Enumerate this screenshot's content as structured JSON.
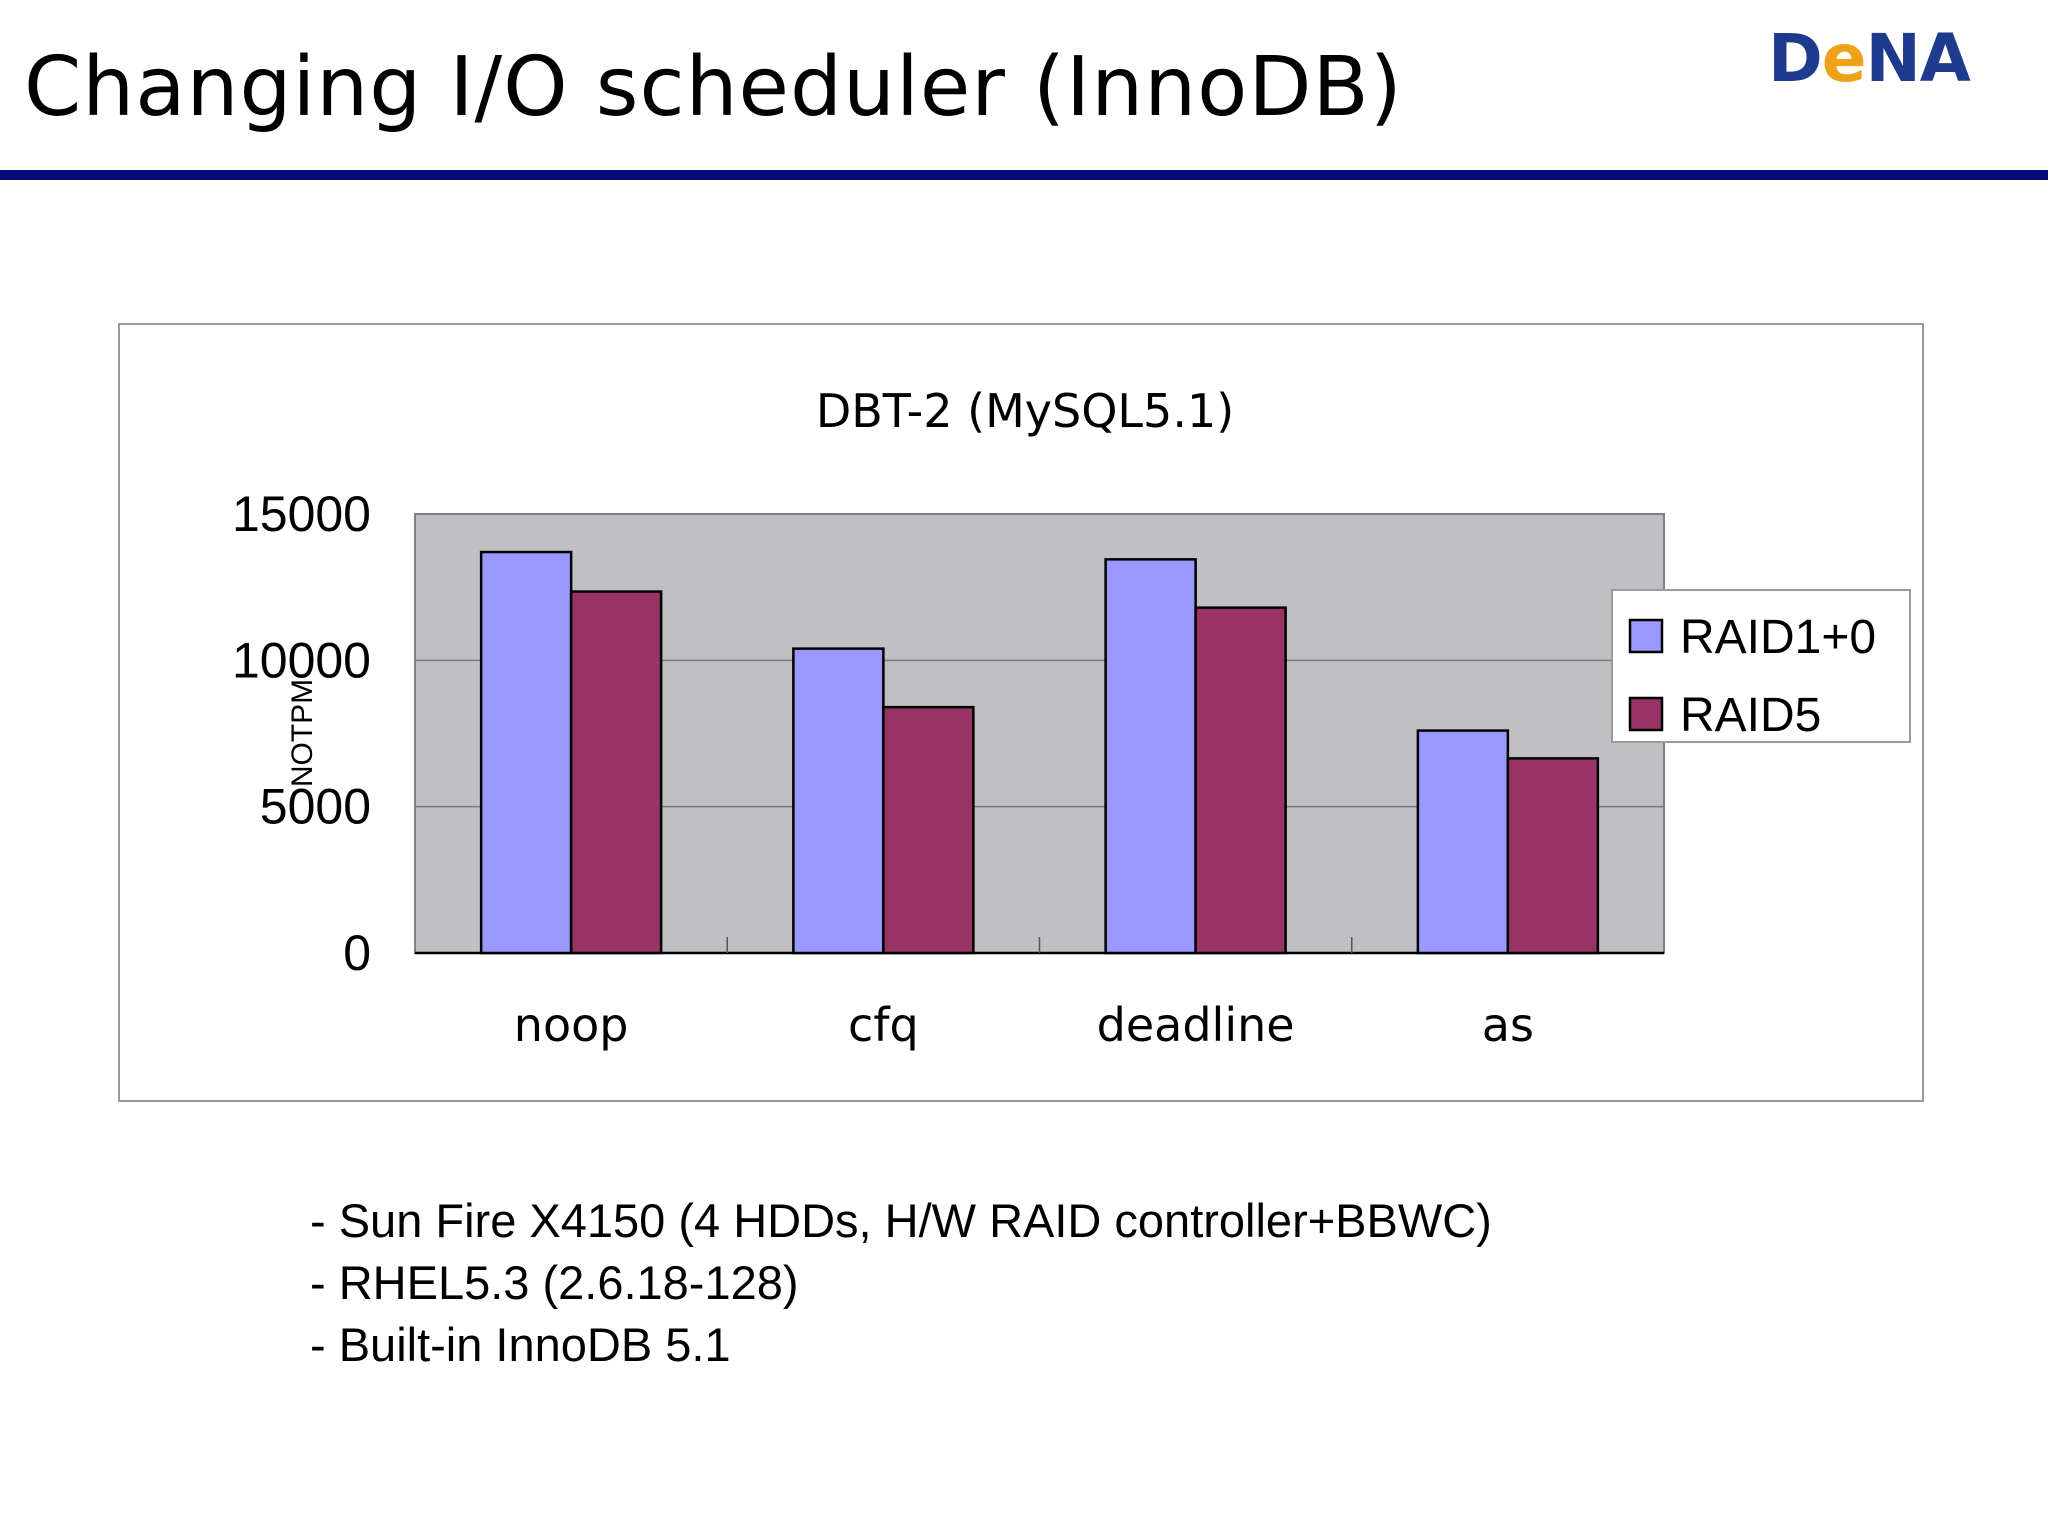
{
  "slide": {
    "title": "Changing I/O scheduler (InnoDB)",
    "logo": {
      "part1": "D",
      "part2": "e",
      "part3": "NA"
    }
  },
  "colors": {
    "rule": "#0a0a7a",
    "plot_background": "#c0c0c4",
    "series": [
      "#9999ff",
      "#993366"
    ]
  },
  "chart_data": {
    "type": "bar",
    "title": "DBT-2 (MySQL5.1)",
    "ylabel": "NOTPM",
    "xlabel": "",
    "categories": [
      "noop",
      "cfq",
      "deadline",
      "as"
    ],
    "series": [
      {
        "name": "RAID1+0",
        "values": [
          13700,
          10400,
          13450,
          7600
        ]
      },
      {
        "name": "RAID5",
        "values": [
          12350,
          8400,
          11800,
          6650
        ]
      }
    ],
    "ylim": [
      0,
      15000
    ],
    "yticks": [
      "0",
      "5000",
      "10000",
      "15000"
    ],
    "grid": true,
    "legend": "right"
  },
  "notes": [
    "- Sun Fire X4150 (4 HDDs, H/W RAID controller+BBWC)",
    "- RHEL5.3 (2.6.18-128)",
    "- Built-in InnoDB 5.1"
  ]
}
